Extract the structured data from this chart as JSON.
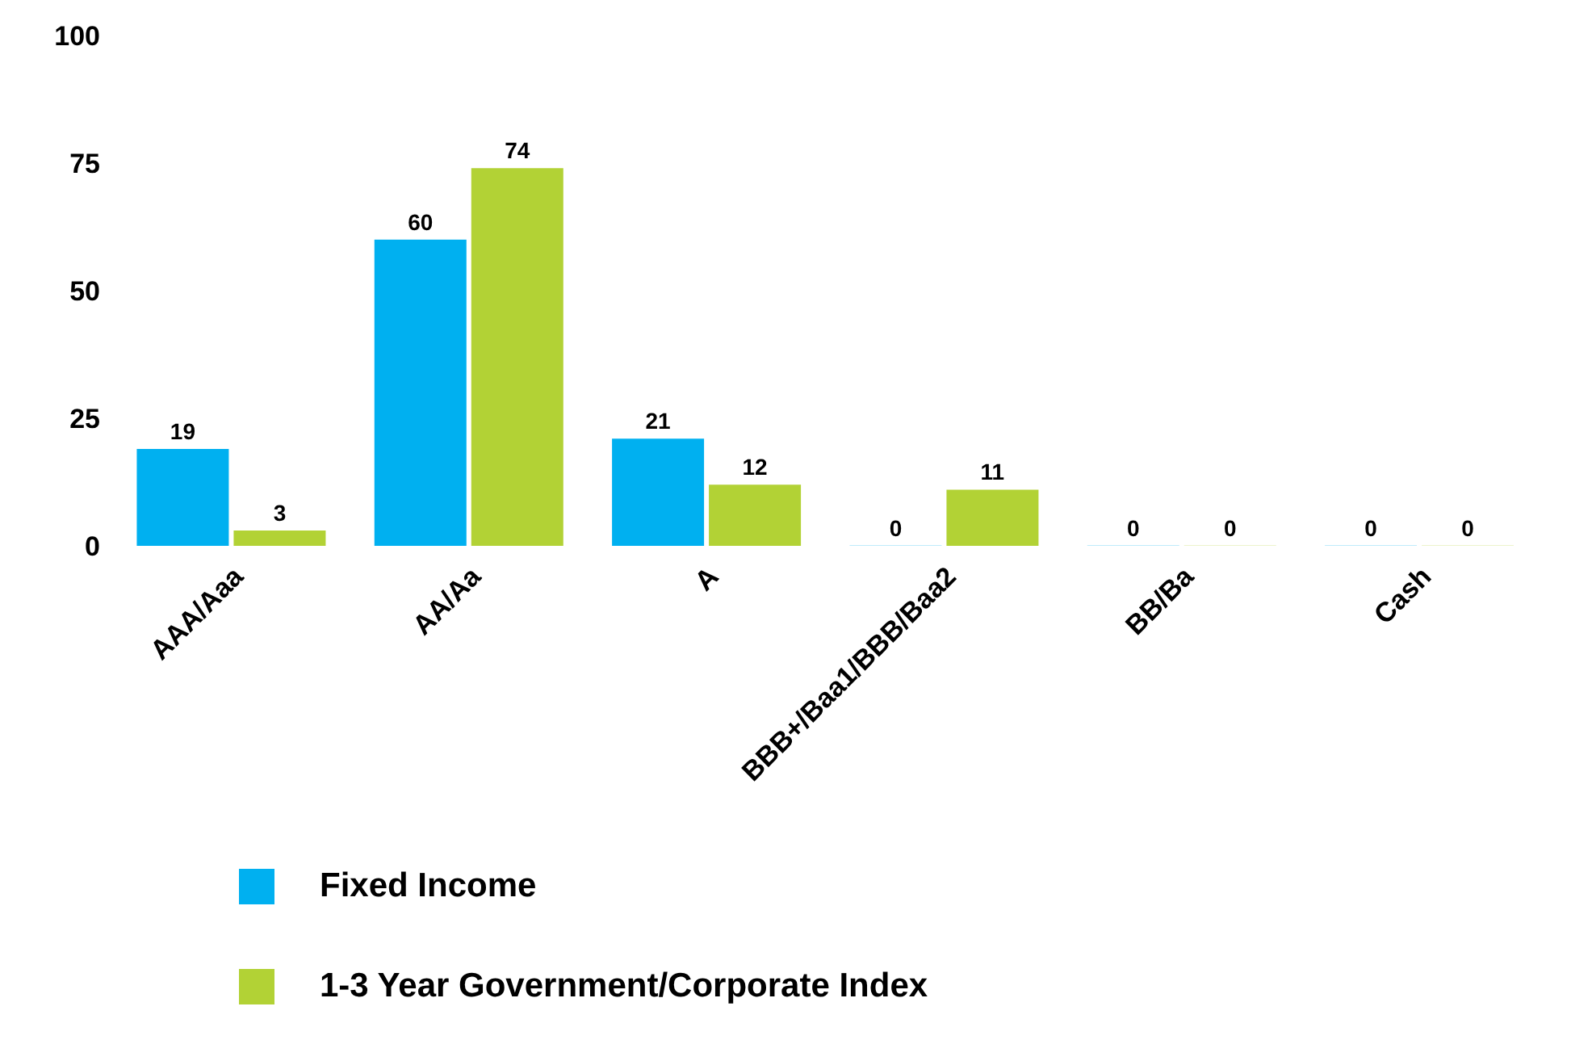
{
  "chart_data": {
    "type": "bar",
    "categories": [
      "AAA/Aaa",
      "AA/Aa",
      "A",
      "BBB+/Baa1/BBB/Baa2",
      "BB/Ba",
      "Cash"
    ],
    "series": [
      {
        "name": "Fixed Income",
        "color": "#00b0f0",
        "values": [
          19,
          60,
          21,
          0,
          0,
          0
        ]
      },
      {
        "name": "1-3 Year Government/Corporate Index",
        "color": "#b2d235",
        "values": [
          3,
          74,
          12,
          11,
          0,
          0
        ]
      }
    ],
    "ylim": [
      0,
      100
    ],
    "yticks": [
      0,
      25,
      50,
      75,
      100
    ],
    "grid": false,
    "legend": "bottom",
    "data_labels": true
  }
}
